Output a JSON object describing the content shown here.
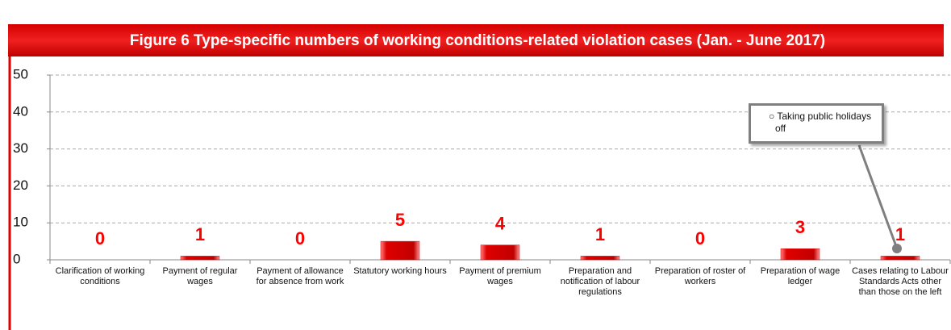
{
  "chart_data": {
    "type": "bar",
    "title": "Figure 6 Type-specific numbers of working conditions-related violation cases (Jan. - June 2017)",
    "categories": [
      "Clarification of working conditions",
      "Payment of regular wages",
      "Payment of allowance for absence from work",
      "Statutory working hours",
      "Payment of premium wages",
      "Preparation and notification of labour regulations",
      "Preparation of roster of workers",
      "Preparation of wage ledger",
      "Cases relating to Labour Standards Acts other than those on the left"
    ],
    "values": [
      0,
      1,
      0,
      5,
      4,
      1,
      0,
      3,
      1
    ],
    "color": "#e00000",
    "ylim": [
      0,
      50
    ],
    "yticks": [
      0,
      10,
      20,
      30,
      40,
      50
    ],
    "grid": true,
    "annotation": "○ Taking public holidays off"
  }
}
